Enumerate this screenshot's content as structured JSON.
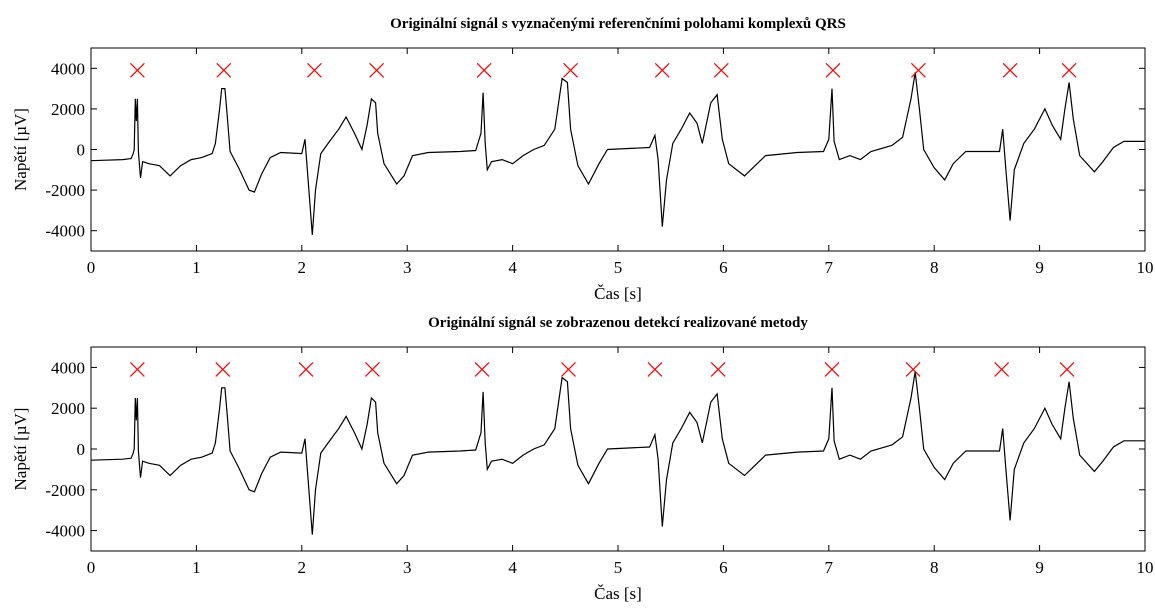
{
  "chart_data": [
    {
      "type": "line",
      "title": "Originální signál s vyznačenými referenčními polohami komplexů QRS",
      "xlabel": "Čas [s]",
      "ylabel": "Napětí [µV]",
      "xlim": [
        0,
        10
      ],
      "ylim": [
        -5000,
        5000
      ],
      "xticks": [
        0,
        1,
        2,
        3,
        4,
        5,
        6,
        7,
        8,
        9,
        10
      ],
      "yticks": [
        -4000,
        -2000,
        0,
        2000,
        4000
      ],
      "color": "#000000",
      "x": [
        0,
        0.3,
        0.38,
        0.4,
        0.41,
        0.42,
        0.43,
        0.44,
        0.45,
        0.47,
        0.49,
        0.55,
        0.65,
        0.75,
        0.85,
        0.95,
        1.05,
        1.15,
        1.18,
        1.22,
        1.24,
        1.27,
        1.29,
        1.32,
        1.4,
        1.5,
        1.55,
        1.62,
        1.7,
        1.8,
        2.0,
        2.03,
        2.06,
        2.1,
        2.13,
        2.18,
        2.25,
        2.35,
        2.42,
        2.5,
        2.57,
        2.62,
        2.66,
        2.7,
        2.72,
        2.78,
        2.9,
        2.97,
        3.05,
        3.2,
        3.5,
        3.65,
        3.7,
        3.72,
        3.74,
        3.76,
        3.8,
        3.9,
        4.0,
        4.1,
        4.2,
        4.3,
        4.4,
        4.47,
        4.52,
        4.55,
        4.62,
        4.72,
        4.82,
        4.9,
        5.1,
        5.3,
        5.35,
        5.38,
        5.42,
        5.46,
        5.52,
        5.6,
        5.68,
        5.75,
        5.8,
        5.88,
        5.94,
        5.99,
        6.05,
        6.2,
        6.28,
        6.4,
        6.7,
        6.95,
        7.0,
        7.03,
        7.05,
        7.1,
        7.2,
        7.3,
        7.4,
        7.6,
        7.7,
        7.78,
        7.82,
        7.86,
        7.9,
        8.0,
        8.1,
        8.18,
        8.3,
        8.5,
        8.62,
        8.65,
        8.68,
        8.72,
        8.76,
        8.85,
        8.95,
        9.05,
        9.12,
        9.2,
        9.24,
        9.28,
        9.32,
        9.38,
        9.52,
        9.6,
        9.7,
        9.8,
        10
      ],
      "values": [
        -550,
        -500,
        -450,
        -200,
        0,
        2500,
        1400,
        2500,
        -100,
        -1400,
        -600,
        -700,
        -800,
        -1300,
        -800,
        -500,
        -400,
        -200,
        300,
        2000,
        3000,
        3000,
        1800,
        -100,
        -900,
        -2000,
        -2100,
        -1200,
        -400,
        -150,
        -200,
        500,
        -1500,
        -4200,
        -2000,
        -200,
        300,
        1000,
        1600,
        800,
        0,
        1200,
        2500,
        2300,
        800,
        -700,
        -1700,
        -1300,
        -300,
        -150,
        -100,
        -50,
        800,
        2800,
        300,
        -1000,
        -600,
        -500,
        -700,
        -300,
        0,
        200,
        1000,
        3500,
        3300,
        1000,
        -800,
        -1700,
        -700,
        0,
        50,
        100,
        700,
        -500,
        -3800,
        -1500,
        300,
        1000,
        1800,
        1300,
        300,
        2300,
        2700,
        500,
        -700,
        -1300,
        -900,
        -300,
        -150,
        -100,
        500,
        3000,
        400,
        -500,
        -300,
        -500,
        -100,
        200,
        600,
        2500,
        3800,
        2000,
        0,
        -900,
        -1500,
        -700,
        -100,
        -100,
        -100,
        1000,
        -1000,
        -3500,
        -1000,
        300,
        1000,
        2000,
        1200,
        500,
        2000,
        3300,
        1500,
        -300,
        -1100,
        -600,
        100,
        400,
        400
      ],
      "markers": {
        "color": "#ff0000",
        "x": [
          0.44,
          1.26,
          2.12,
          2.71,
          3.73,
          4.55,
          5.42,
          5.98,
          7.04,
          7.85,
          8.72,
          9.28
        ],
        "values": [
          3900,
          3900,
          3900,
          3900,
          3900,
          3900,
          3900,
          3900,
          3900,
          3900,
          3900,
          3900
        ]
      }
    },
    {
      "type": "line",
      "title": "Originální signál se zobrazenou detekcí realizované metody",
      "xlabel": "Čas [s]",
      "ylabel": "Napětí [µV]",
      "xlim": [
        0,
        10
      ],
      "ylim": [
        -5000,
        5000
      ],
      "xticks": [
        0,
        1,
        2,
        3,
        4,
        5,
        6,
        7,
        8,
        9,
        10
      ],
      "yticks": [
        -4000,
        -2000,
        0,
        2000,
        4000
      ],
      "color": "#000000",
      "x": [
        0,
        0.3,
        0.38,
        0.4,
        0.41,
        0.42,
        0.43,
        0.44,
        0.45,
        0.47,
        0.49,
        0.55,
        0.65,
        0.75,
        0.85,
        0.95,
        1.05,
        1.15,
        1.18,
        1.22,
        1.24,
        1.27,
        1.29,
        1.32,
        1.4,
        1.5,
        1.55,
        1.62,
        1.7,
        1.8,
        2.0,
        2.03,
        2.06,
        2.1,
        2.13,
        2.18,
        2.25,
        2.35,
        2.42,
        2.5,
        2.57,
        2.62,
        2.66,
        2.7,
        2.72,
        2.78,
        2.9,
        2.97,
        3.05,
        3.2,
        3.5,
        3.65,
        3.7,
        3.72,
        3.74,
        3.76,
        3.8,
        3.9,
        4.0,
        4.1,
        4.2,
        4.3,
        4.4,
        4.47,
        4.52,
        4.55,
        4.62,
        4.72,
        4.82,
        4.9,
        5.1,
        5.3,
        5.35,
        5.38,
        5.42,
        5.46,
        5.52,
        5.6,
        5.68,
        5.75,
        5.8,
        5.88,
        5.94,
        5.99,
        6.05,
        6.2,
        6.28,
        6.4,
        6.7,
        6.95,
        7.0,
        7.03,
        7.05,
        7.1,
        7.2,
        7.3,
        7.4,
        7.6,
        7.7,
        7.78,
        7.82,
        7.86,
        7.9,
        8.0,
        8.1,
        8.18,
        8.3,
        8.5,
        8.62,
        8.65,
        8.68,
        8.72,
        8.76,
        8.85,
        8.95,
        9.05,
        9.12,
        9.2,
        9.24,
        9.28,
        9.32,
        9.38,
        9.52,
        9.6,
        9.7,
        9.8,
        10
      ],
      "values": [
        -550,
        -500,
        -450,
        -200,
        0,
        2500,
        1400,
        2500,
        -100,
        -1400,
        -600,
        -700,
        -800,
        -1300,
        -800,
        -500,
        -400,
        -200,
        300,
        2000,
        3000,
        3000,
        1800,
        -100,
        -900,
        -2000,
        -2100,
        -1200,
        -400,
        -150,
        -200,
        500,
        -1500,
        -4200,
        -2000,
        -200,
        300,
        1000,
        1600,
        800,
        0,
        1200,
        2500,
        2300,
        800,
        -700,
        -1700,
        -1300,
        -300,
        -150,
        -100,
        -50,
        800,
        2800,
        300,
        -1000,
        -600,
        -500,
        -700,
        -300,
        0,
        200,
        1000,
        3500,
        3300,
        1000,
        -800,
        -1700,
        -700,
        0,
        50,
        100,
        700,
        -500,
        -3800,
        -1500,
        300,
        1000,
        1800,
        1300,
        300,
        2300,
        2700,
        500,
        -700,
        -1300,
        -900,
        -300,
        -150,
        -100,
        500,
        3000,
        400,
        -500,
        -300,
        -500,
        -100,
        200,
        600,
        2500,
        3800,
        2000,
        0,
        -900,
        -1500,
        -700,
        -100,
        -100,
        -100,
        1000,
        -1000,
        -3500,
        -1000,
        300,
        1000,
        2000,
        1200,
        500,
        2000,
        3300,
        1500,
        -300,
        -1100,
        -600,
        100,
        400,
        400
      ],
      "markers": {
        "color": "#ff0000",
        "x": [
          0.44,
          1.25,
          2.04,
          2.67,
          3.71,
          4.53,
          5.35,
          5.95,
          7.03,
          7.8,
          8.64,
          9.26
        ],
        "values": [
          3900,
          3900,
          3900,
          3900,
          3900,
          3900,
          3900,
          3900,
          3900,
          3900,
          3900,
          3900
        ]
      }
    }
  ]
}
